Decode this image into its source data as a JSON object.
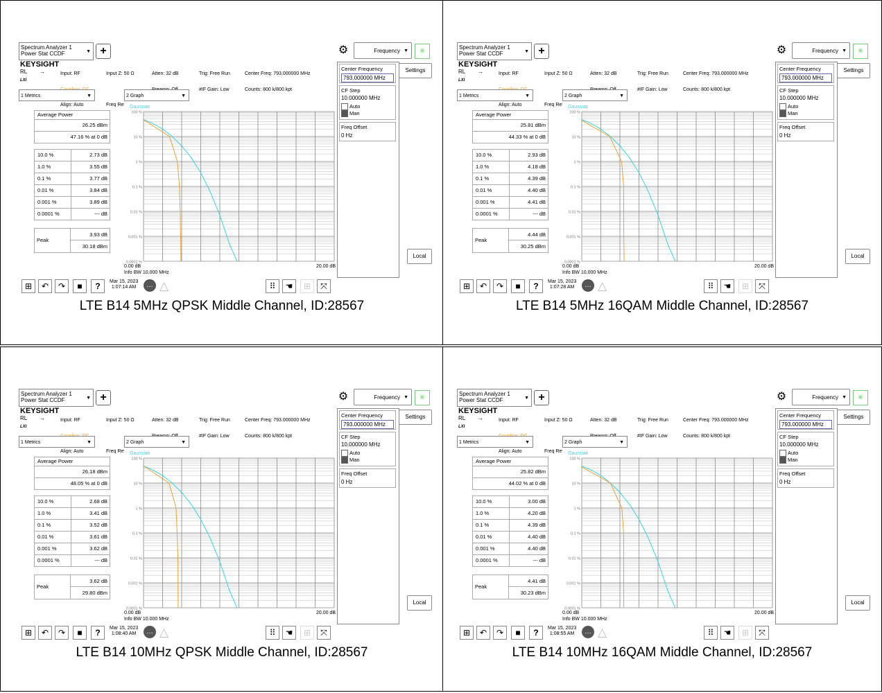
{
  "common": {
    "app_title_line1": "Spectrum Analyzer 1",
    "app_title_line2": "Power Stat CCDF",
    "add_label": "+",
    "menu_dropdown": "Frequency",
    "logo": "KEYSIGHT",
    "rl": "RL",
    "lxi": "LXI",
    "info": {
      "input": "Input: RF",
      "coupling": "Coupling: DC",
      "align": "Align: Auto",
      "input_z": "Input Z: 50 Ω",
      "freq_ref": "Freq Ref: Int (S)",
      "atten": "Atten: 32 dB",
      "preamp": "Preamp: Off",
      "uw_path": "µW Path: Standard",
      "trig": "Trig: Free Run",
      "if_gain": "#IF Gain: Low",
      "center_freq": "Center Freq: 793.000000 MHz",
      "counts": "Counts: 800 k/800 kpt",
      "radio_std": "Radio Std: None"
    },
    "metrics_dropdown": "1 Metrics",
    "graph_dropdown": "2 Graph",
    "gaussian": "Gaussian",
    "yticks": [
      "100 %",
      "10 %",
      "1 %",
      "0.1 %",
      "0.01 %",
      "0.001 %",
      "0.0001 %"
    ],
    "x_left": "0.00 dB",
    "x_right": "20.00 dB",
    "info_bw": "Info BW 10.000 MHz",
    "avg_power_label": "Average Power",
    "peak_label": "Peak",
    "pct_labels": [
      "10.0 %",
      "1.0 %",
      "0.1 %",
      "0.01 %",
      "0.001 %",
      "0.0001 %"
    ],
    "side": {
      "center_freq_label": "Center Frequency",
      "center_freq_value": "793.000000 MHz",
      "cf_step_label": "CF Step",
      "cf_step_value": "10.000000 MHz",
      "auto": "Auto",
      "man": "Man",
      "freq_offset_label": "Freq Offset",
      "freq_offset_value": "0 Hz",
      "settings": "Settings",
      "local": "Local"
    },
    "colors": {
      "gaussian": "#33d6e6",
      "measured": "#f0a030",
      "highlight": "#f0a020"
    }
  },
  "panels": [
    {
      "caption": "LTE B14 5MHz QPSK Middle Channel, ID:28567",
      "avg_dbm": "26.25 dBm",
      "pct_at_0": "47.16 % at 0 dB",
      "values": [
        "2.73 dB",
        "3.55 dB",
        "3.77 dB",
        "3.84 dB",
        "3.89 dB",
        "--- dB"
      ],
      "peak_db": "3.93 dB",
      "peak_dbm": "30.18 dBm",
      "date": "Mar 15, 2023",
      "time": "1:07:14 AM"
    },
    {
      "caption": "LTE B14 5MHz 16QAM Middle Channel, ID:28567",
      "avg_dbm": "25.81 dBm",
      "pct_at_0": "44.33 % at 0 dB",
      "values": [
        "2.93 dB",
        "4.18 dB",
        "4.39 dB",
        "4.40 dB",
        "4.41 dB",
        "--- dB"
      ],
      "peak_db": "4.44 dB",
      "peak_dbm": "30.25 dBm",
      "date": "Mar 15, 2023",
      "time": "1:07:28 AM"
    },
    {
      "caption": "LTE B14 10MHz QPSK Middle Channel, ID:28567",
      "avg_dbm": "26.18 dBm",
      "pct_at_0": "48.05 % at 0 dB",
      "values": [
        "2.68 dB",
        "3.41 dB",
        "3.52 dB",
        "3.61 dB",
        "3.62 dB",
        "--- dB"
      ],
      "peak_db": "3.62 dB",
      "peak_dbm": "29.80 dBm",
      "date": "Mar 15, 2023",
      "time": "1:08:40 AM"
    },
    {
      "caption": "LTE B14 10MHz 16QAM Middle Channel, ID:28567",
      "avg_dbm": "25.82 dBm",
      "pct_at_0": "44.02 % at 0 dB",
      "values": [
        "3.00 dB",
        "4.20 dB",
        "4.39 dB",
        "4.40 dB",
        "4.40 dB",
        "--- dB"
      ],
      "peak_db": "4.41 dB",
      "peak_dbm": "30.23 dBm",
      "date": "Mar 15, 2023",
      "time": "1:08:55 AM"
    }
  ]
}
